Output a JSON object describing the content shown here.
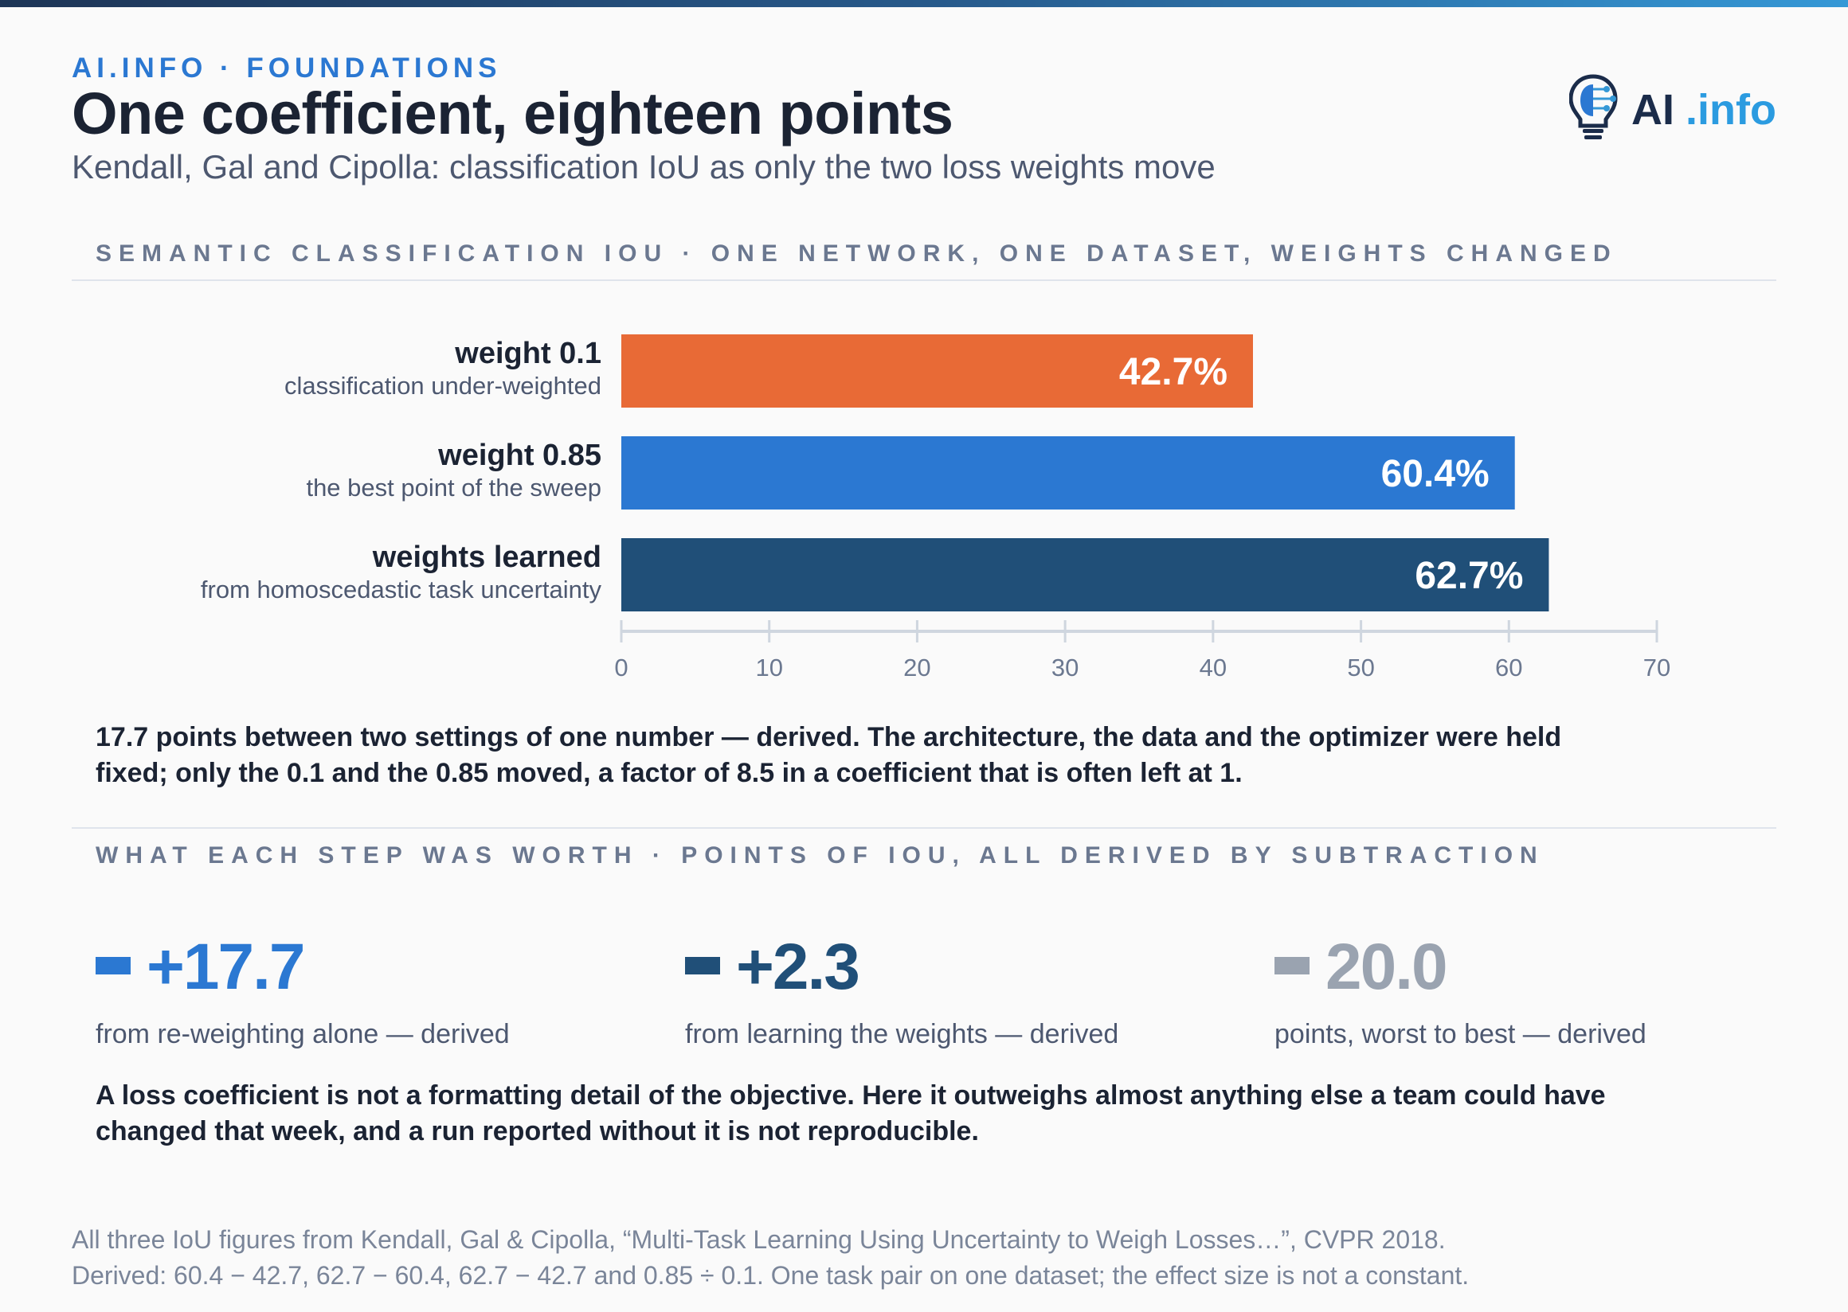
{
  "header": {
    "kicker": "AI.INFO · FOUNDATIONS",
    "title": "One coefficient, eighteen points",
    "subtitle": "Kendall, Gal and Cipolla: classification IoU as only the two loss weights move",
    "logo_text_dark": "AI",
    "logo_text_accent": ".info"
  },
  "section1": {
    "label": "SEMANTIC CLASSIFICATION IOU · ONE NETWORK, ONE DATASET, WEIGHTS CHANGED"
  },
  "chart_data": {
    "type": "bar",
    "orientation": "horizontal",
    "categories": [
      "weight 0.1",
      "weight 0.85",
      "weights learned"
    ],
    "category_notes": [
      "classification under-weighted",
      "the best point of the sweep",
      "from homoscedastic task uncertainty"
    ],
    "values": [
      42.7,
      60.4,
      62.7
    ],
    "value_labels": [
      "42.7%",
      "60.4%",
      "62.7%"
    ],
    "colors": [
      "#e86a36",
      "#2b78d2",
      "#204f78"
    ],
    "xlim": [
      0,
      70
    ],
    "xticks": [
      0,
      10,
      20,
      30,
      40,
      50,
      60,
      70
    ],
    "grid": false
  },
  "lead": "17.7 points between two settings of one number — derived. The architecture, the data and the optimizer were held fixed; only the 0.1 and the 0.85 moved, a factor of 8.5 in a coefficient that is often left at 1.",
  "section2": {
    "label": "WHAT EACH STEP WAS WORTH · POINTS OF IOU, ALL DERIVED BY SUBTRACTION"
  },
  "stats": [
    {
      "value": "+17.7",
      "caption": "from re-weighting alone — derived",
      "color": "#2b78d2"
    },
    {
      "value": "+2.3",
      "caption": "from learning the weights — derived",
      "color": "#204f78"
    },
    {
      "value": "20.0",
      "caption": "points, worst to best — derived",
      "color": "#9aa3b0"
    }
  ],
  "closing": "A loss coefficient is not a formatting detail of the objective. Here it outweighs almost anything else a team could have changed that week, and a run reported without it is not reproducible.",
  "source": {
    "line1": "All three IoU figures from Kendall, Gal & Cipolla, “Multi-Task Learning Using Uncertainty to Weigh Losses…”, CVPR 2018.",
    "line2": "Derived: 60.4 − 42.7, 62.7 − 60.4, 62.7 − 42.7 and 0.85 ÷ 0.1. One task pair on one dataset; the effect size is not a constant."
  }
}
